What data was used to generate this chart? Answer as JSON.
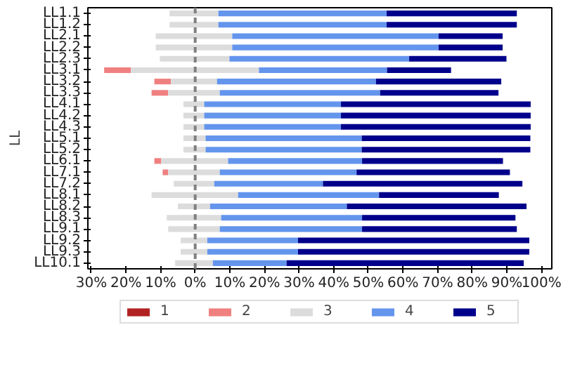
{
  "chart_data": {
    "type": "bar",
    "orientation": "horizontal",
    "ylabel": "LL",
    "categories": [
      "LL1.1",
      "LL1.2",
      "LL2.1",
      "LL2.2",
      "LL2.3",
      "LL3.1",
      "LL3.2",
      "LL3.3",
      "LL4.1",
      "LL4.2",
      "LL4.3",
      "LL5.1",
      "LL5.2",
      "LL6.1",
      "LL7.1",
      "LL7.2",
      "LL8.1",
      "LL8.2",
      "LL8.3",
      "LL9.1",
      "LL9.2",
      "LL9.3",
      "LL10.1"
    ],
    "series": [
      {
        "name": "1",
        "color": "#b22222",
        "values": [
          0,
          0,
          0,
          0,
          0,
          0,
          0,
          0,
          0,
          0,
          0,
          0,
          0,
          0,
          0,
          0,
          0,
          0,
          0,
          0,
          0,
          0,
          0
        ]
      },
      {
        "name": "2",
        "color": "#f08080",
        "values": [
          0,
          0,
          0,
          0,
          0,
          7.7,
          4.8,
          4.8,
          0,
          0,
          0,
          0,
          0,
          2.0,
          1.6,
          0,
          0,
          0,
          0,
          0,
          0,
          0,
          0
        ],
        "base": [
          null,
          null,
          null,
          null,
          null,
          -26.3,
          -11.8,
          -12.6,
          null,
          null,
          null,
          null,
          null,
          -11.8,
          -9.4,
          null,
          null,
          null,
          null,
          null,
          null,
          null,
          null
        ]
      },
      {
        "name": "3",
        "color": "#dcdcdc",
        "values": [
          14.1,
          14.1,
          22.1,
          22.1,
          20.1,
          37.0,
          13.3,
          14.9,
          6.0,
          6.0,
          6.0,
          6.4,
          6.4,
          19.3,
          14.9,
          11.7,
          25.0,
          9.3,
          15.7,
          14.9,
          7.7,
          7.7,
          10.9
        ],
        "base": [
          -7.4,
          -7.4,
          -11.4,
          -11.4,
          -10.2,
          -18.6,
          -7.0,
          -7.8,
          -3.4,
          -3.4,
          -3.4,
          -3.4,
          -3.4,
          -9.8,
          -7.8,
          -6.2,
          -12.6,
          -5.0,
          -8.2,
          -7.8,
          -4.2,
          -4.2,
          -5.8
        ]
      },
      {
        "name": "4",
        "color": "#6495ed",
        "values": [
          48.6,
          48.6,
          59.6,
          59.6,
          51.9,
          37.0,
          45.9,
          46.3,
          39.5,
          39.5,
          39.5,
          45.1,
          45.1,
          38.7,
          39.5,
          31.4,
          40.7,
          39.5,
          40.7,
          41.1,
          26.2,
          26.2,
          21.3
        ],
        "base": [
          6.7,
          6.7,
          10.7,
          10.7,
          9.9,
          18.4,
          6.3,
          7.1,
          2.6,
          2.6,
          2.6,
          3.0,
          3.0,
          9.5,
          7.1,
          5.5,
          12.4,
          4.3,
          7.5,
          7.1,
          3.5,
          3.5,
          5.1
        ]
      },
      {
        "name": "5",
        "color": "#00008b",
        "values": [
          37.6,
          37.6,
          18.5,
          18.5,
          28.1,
          18.5,
          36.2,
          34.2,
          54.8,
          54.8,
          54.8,
          48.7,
          48.7,
          40.7,
          44.3,
          57.6,
          34.6,
          51.9,
          44.3,
          44.7,
          66.8,
          66.8,
          68.5
        ],
        "base": [
          55.3,
          55.3,
          70.3,
          70.3,
          61.8,
          55.4,
          52.2,
          53.4,
          42.1,
          42.1,
          42.1,
          48.1,
          48.1,
          48.2,
          46.6,
          36.9,
          53.1,
          43.8,
          48.2,
          48.2,
          29.7,
          29.7,
          26.4
        ]
      }
    ],
    "xlim": [
      -31,
      103
    ],
    "xticks": [
      {
        "value": -30,
        "label": "30%"
      },
      {
        "value": -20,
        "label": "20%"
      },
      {
        "value": -10,
        "label": "10%"
      },
      {
        "value": 0,
        "label": "0%"
      },
      {
        "value": 10,
        "label": "10%"
      },
      {
        "value": 20,
        "label": "20%"
      },
      {
        "value": 30,
        "label": "30%"
      },
      {
        "value": 40,
        "label": "40%"
      },
      {
        "value": 50,
        "label": "50%"
      },
      {
        "value": 60,
        "label": "60%"
      },
      {
        "value": 70,
        "label": "70%"
      },
      {
        "value": 80,
        "label": "80%"
      },
      {
        "value": 90,
        "label": "90%"
      },
      {
        "value": 100,
        "label": "100%"
      }
    ],
    "ref_lines": [
      {
        "axis": "x",
        "value": 0,
        "color": "#808080",
        "line_style": "dashed"
      }
    ],
    "legend": "bottom"
  }
}
